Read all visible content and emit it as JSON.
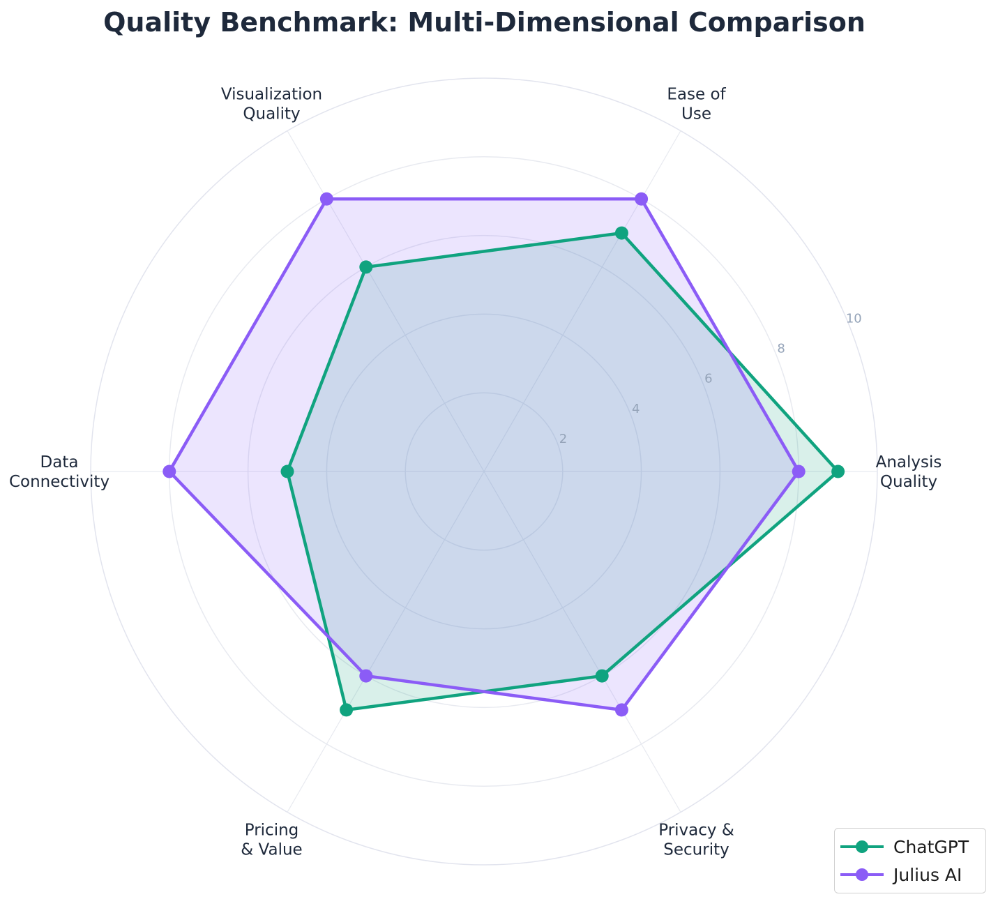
{
  "chart_data": {
    "type": "radar",
    "title": "Quality Benchmark: Multi-Dimensional Comparison",
    "axes": [
      "Analysis\nQuality",
      "Ease of\nUse",
      "Visualization\nQuality",
      "Data\nConnectivity",
      "Pricing\n& Value",
      "Privacy &\nSecurity"
    ],
    "rlim": [
      0,
      10
    ],
    "rticks": [
      2,
      4,
      6,
      8,
      10
    ],
    "grid": true,
    "legend_position": "lower-right",
    "series": [
      {
        "name": "ChatGPT",
        "color": "#10a37f",
        "values": [
          9,
          7,
          6,
          5,
          7,
          6
        ]
      },
      {
        "name": "Julius AI",
        "color": "#8b5cf6",
        "values": [
          8,
          8,
          8,
          8,
          6,
          7
        ]
      }
    ]
  }
}
